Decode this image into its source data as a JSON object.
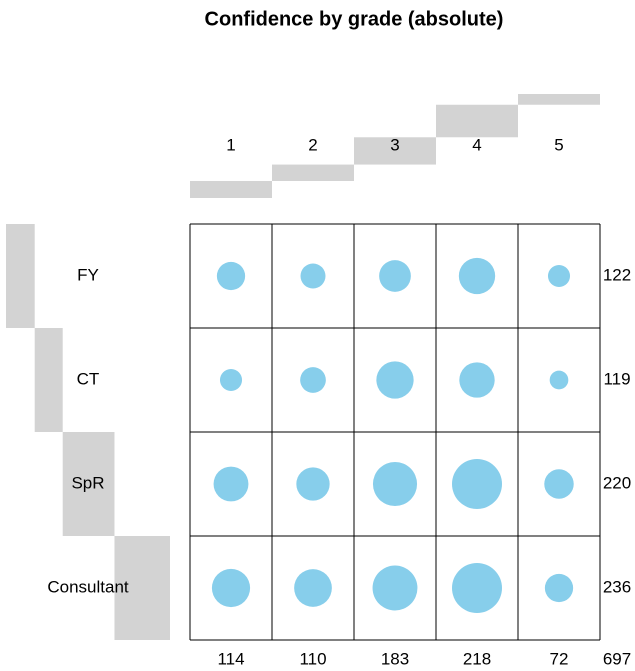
{
  "chart_data": {
    "type": "balloon",
    "title": "Confidence by grade (absolute)",
    "columns": [
      "1",
      "2",
      "3",
      "4",
      "5"
    ],
    "rows": [
      "FY",
      "CT",
      "SpR",
      "Consultant"
    ],
    "values": [
      [
        23,
        18,
        29,
        38,
        14
      ],
      [
        14,
        19,
        40,
        36,
        10
      ],
      [
        35,
        32,
        56,
        72,
        25
      ],
      [
        42,
        41,
        58,
        72,
        23
      ]
    ],
    "row_totals": [
      122,
      119,
      220,
      236
    ],
    "column_totals": [
      114,
      110,
      183,
      218,
      72
    ],
    "grand_total": 697,
    "color": "#87ceeb",
    "margin_color": "#d3d3d3"
  }
}
